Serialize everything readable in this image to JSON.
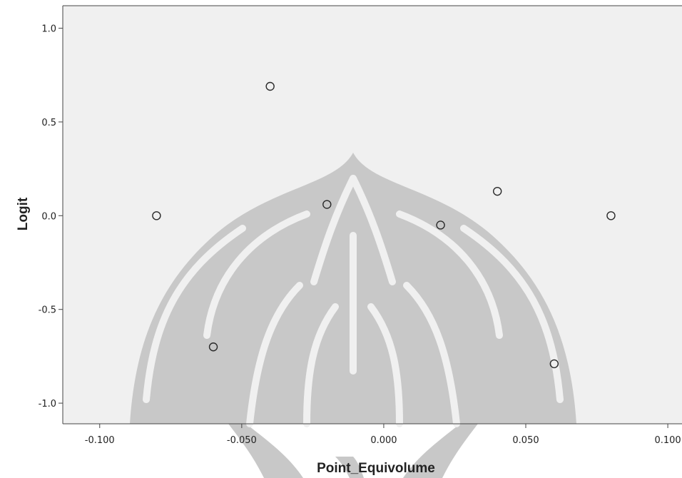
{
  "chart_data": {
    "type": "scatter",
    "title": "",
    "xlabel": "Point_Equivolume",
    "ylabel": "Logit",
    "xlim": [
      -0.113,
      0.105
    ],
    "ylim": [
      -1.11,
      1.12
    ],
    "x_ticks": [
      -0.1,
      -0.05,
      0.0,
      0.05,
      0.1
    ],
    "x_tick_labels": [
      "-0.100",
      "-0.050",
      "0.000",
      "0.050",
      "0.100"
    ],
    "y_ticks": [
      1.0,
      0.5,
      0.0,
      -0.5,
      -1.0
    ],
    "y_tick_labels": [
      "1.0",
      "0.5",
      "0.0",
      "-0.5",
      "-1.0"
    ],
    "grid": false,
    "marker": "open-circle",
    "x": [
      -0.08,
      -0.06,
      -0.04,
      -0.02,
      0.02,
      0.04,
      0.06,
      0.08
    ],
    "y": [
      0.0,
      -0.7,
      0.69,
      0.06,
      -0.05,
      0.13,
      -0.79,
      0.0
    ]
  },
  "colors": {
    "plot_background": "#f0f0f0",
    "watermark": "#c8c8c8",
    "marker_stroke": "#2a2a2a",
    "axis": "#444444"
  }
}
